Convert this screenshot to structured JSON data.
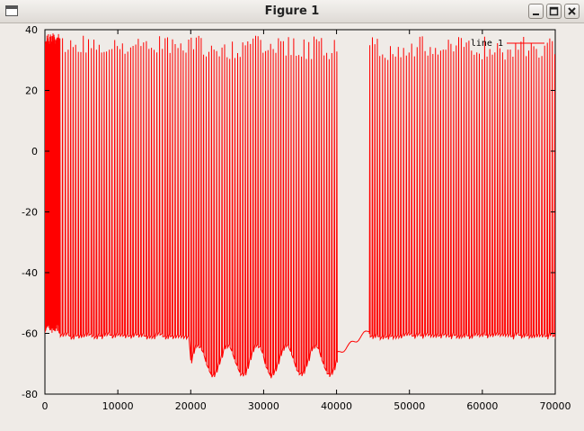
{
  "window": {
    "title": "Figure 1",
    "controls": [
      "minimize",
      "maximize",
      "close"
    ]
  },
  "chart_data": {
    "type": "line",
    "title": "",
    "xlabel": "",
    "ylabel": "",
    "xlim": [
      0,
      70000
    ],
    "ylim": [
      -80,
      40
    ],
    "x_ticks": [
      "0",
      "10000",
      "20000",
      "30000",
      "40000",
      "50000",
      "60000",
      "70000"
    ],
    "y_ticks": [
      "40",
      "20",
      "0",
      "-20",
      "-40",
      "-60",
      "-80"
    ],
    "grid": false,
    "legend_position": "top-right",
    "series": [
      {
        "name": "line 1",
        "color": "#ff0000",
        "description_segments": [
          {
            "x_range": [
              0,
              2000
            ],
            "behavior": "dense spiking",
            "peak": 39,
            "trough": -60
          },
          {
            "x_range": [
              2000,
              20000
            ],
            "behavior": "regular spiking",
            "peak": 38,
            "baseline": -61
          },
          {
            "x_range": [
              20000,
              40000
            ],
            "behavior": "spiking with oscillating trough",
            "peak": 38,
            "trough_min": -74,
            "trough_max": -64
          },
          {
            "x_range": [
              40000,
              44500
            ],
            "behavior": "silent, rising baseline",
            "start": -67,
            "end": -59
          },
          {
            "x_range": [
              44500,
              70000
            ],
            "behavior": "regular spiking",
            "peak": 38,
            "baseline": -61
          }
        ]
      }
    ]
  }
}
